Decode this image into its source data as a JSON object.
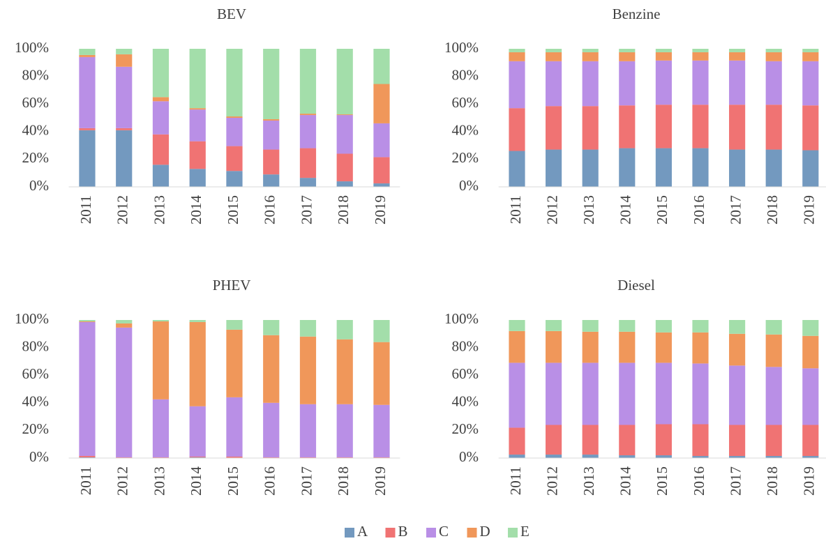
{
  "chart_data": [
    {
      "type": "bar",
      "stacked": true,
      "title": "BEV",
      "categories": [
        "2011",
        "2012",
        "2013",
        "2014",
        "2015",
        "2016",
        "2017",
        "2018",
        "2019"
      ],
      "series": [
        {
          "name": "A",
          "color": "#7399bf",
          "values": [
            41,
            41,
            16,
            13,
            11.5,
            9,
            6.5,
            4,
            2.5
          ]
        },
        {
          "name": "B",
          "color": "#f07373",
          "values": [
            1.5,
            1.5,
            22,
            20,
            18,
            18,
            21.5,
            20,
            19
          ]
        },
        {
          "name": "C",
          "color": "#b98fe6",
          "values": [
            51.5,
            44.5,
            24,
            23,
            20.5,
            21,
            24,
            28,
            24.5
          ]
        },
        {
          "name": "D",
          "color": "#f0975a",
          "values": [
            1.5,
            9,
            3,
            1,
            1,
            1,
            1,
            0.5,
            28.5
          ]
        },
        {
          "name": "E",
          "color": "#a3deaa",
          "values": [
            4.5,
            4,
            35,
            43,
            49,
            51,
            47,
            47.5,
            25.5
          ]
        }
      ],
      "ylim": [
        0,
        100
      ],
      "yticks": [
        {
          "value": 0,
          "label": "0%"
        },
        {
          "value": 20,
          "label": "20%"
        },
        {
          "value": 40,
          "label": "40%"
        },
        {
          "value": 60,
          "label": "60%"
        },
        {
          "value": 80,
          "label": "80%"
        },
        {
          "value": 100,
          "label": "100%"
        }
      ]
    },
    {
      "type": "bar",
      "stacked": true,
      "title": "Benzine",
      "categories": [
        "2011",
        "2012",
        "2013",
        "2014",
        "2015",
        "2016",
        "2017",
        "2018",
        "2019"
      ],
      "series": [
        {
          "name": "A",
          "color": "#7399bf",
          "values": [
            26,
            27,
            27,
            28,
            28,
            28,
            27,
            27,
            26.5
          ]
        },
        {
          "name": "B",
          "color": "#f07373",
          "values": [
            31,
            31.5,
            31.5,
            31,
            31.5,
            31.5,
            32.5,
            32.5,
            32.5
          ]
        },
        {
          "name": "C",
          "color": "#b98fe6",
          "values": [
            34,
            32.5,
            32.5,
            32,
            32,
            32,
            32,
            31.5,
            32
          ]
        },
        {
          "name": "D",
          "color": "#f0975a",
          "values": [
            6.5,
            6.5,
            6.5,
            6.5,
            6,
            6,
            6,
            6.5,
            6.5
          ]
        },
        {
          "name": "E",
          "color": "#a3deaa",
          "values": [
            2.5,
            2.5,
            2.5,
            2.5,
            2.5,
            2.5,
            2.5,
            2.5,
            2.5
          ]
        }
      ],
      "ylim": [
        0,
        100
      ],
      "yticks": [
        {
          "value": 0,
          "label": "0%"
        },
        {
          "value": 20,
          "label": "20%"
        },
        {
          "value": 40,
          "label": "40%"
        },
        {
          "value": 60,
          "label": "60%"
        },
        {
          "value": 80,
          "label": "80%"
        },
        {
          "value": 100,
          "label": "100%"
        }
      ]
    },
    {
      "type": "bar",
      "stacked": true,
      "title": "PHEV",
      "categories": [
        "2011",
        "2012",
        "2013",
        "2014",
        "2015",
        "2016",
        "2017",
        "2018",
        "2019"
      ],
      "series": [
        {
          "name": "A",
          "color": "#7399bf",
          "values": [
            0.5,
            0,
            0,
            0.5,
            0,
            0,
            0,
            0,
            0
          ]
        },
        {
          "name": "B",
          "color": "#f07373",
          "values": [
            1,
            0.5,
            0.5,
            0.5,
            1,
            0.5,
            0.5,
            0.5,
            0.5
          ]
        },
        {
          "name": "C",
          "color": "#b98fe6",
          "values": [
            97,
            94,
            42,
            36.5,
            43,
            39.5,
            38.5,
            38.5,
            38
          ]
        },
        {
          "name": "D",
          "color": "#f0975a",
          "values": [
            0.5,
            3,
            56.5,
            61,
            49,
            49,
            49,
            47,
            45.5
          ]
        },
        {
          "name": "E",
          "color": "#a3deaa",
          "values": [
            1,
            2.5,
            1,
            1.5,
            7,
            11,
            12,
            14,
            16
          ]
        }
      ],
      "ylim": [
        0,
        100
      ],
      "yticks": [
        {
          "value": 0,
          "label": "0%"
        },
        {
          "value": 20,
          "label": "20%"
        },
        {
          "value": 40,
          "label": "40%"
        },
        {
          "value": 60,
          "label": "60%"
        },
        {
          "value": 80,
          "label": "80%"
        },
        {
          "value": 100,
          "label": "100%"
        }
      ]
    },
    {
      "type": "bar",
      "stacked": true,
      "title": "Diesel",
      "categories": [
        "2011",
        "2012",
        "2013",
        "2014",
        "2015",
        "2016",
        "2017",
        "2018",
        "2019"
      ],
      "series": [
        {
          "name": "A",
          "color": "#7399bf",
          "values": [
            2.5,
            2.5,
            2.5,
            2,
            2,
            1.5,
            1.5,
            1.5,
            1.5
          ]
        },
        {
          "name": "B",
          "color": "#f07373",
          "values": [
            19.5,
            21.5,
            21.5,
            22,
            22.5,
            23,
            22.5,
            22.5,
            22.5
          ]
        },
        {
          "name": "C",
          "color": "#b98fe6",
          "values": [
            47,
            45,
            45,
            45,
            44.5,
            44,
            43,
            42,
            41
          ]
        },
        {
          "name": "D",
          "color": "#f0975a",
          "values": [
            23,
            23,
            22.5,
            22.5,
            22,
            22.5,
            23,
            23.5,
            23.5
          ]
        },
        {
          "name": "E",
          "color": "#a3deaa",
          "values": [
            8,
            8,
            8.5,
            8.5,
            9,
            9,
            10,
            10.5,
            11.5
          ]
        }
      ],
      "ylim": [
        0,
        100
      ],
      "yticks": [
        {
          "value": 0,
          "label": "0%"
        },
        {
          "value": 20,
          "label": "20%"
        },
        {
          "value": 40,
          "label": "40%"
        },
        {
          "value": 60,
          "label": "60%"
        },
        {
          "value": 80,
          "label": "80%"
        },
        {
          "value": 100,
          "label": "100%"
        }
      ]
    }
  ]
}
